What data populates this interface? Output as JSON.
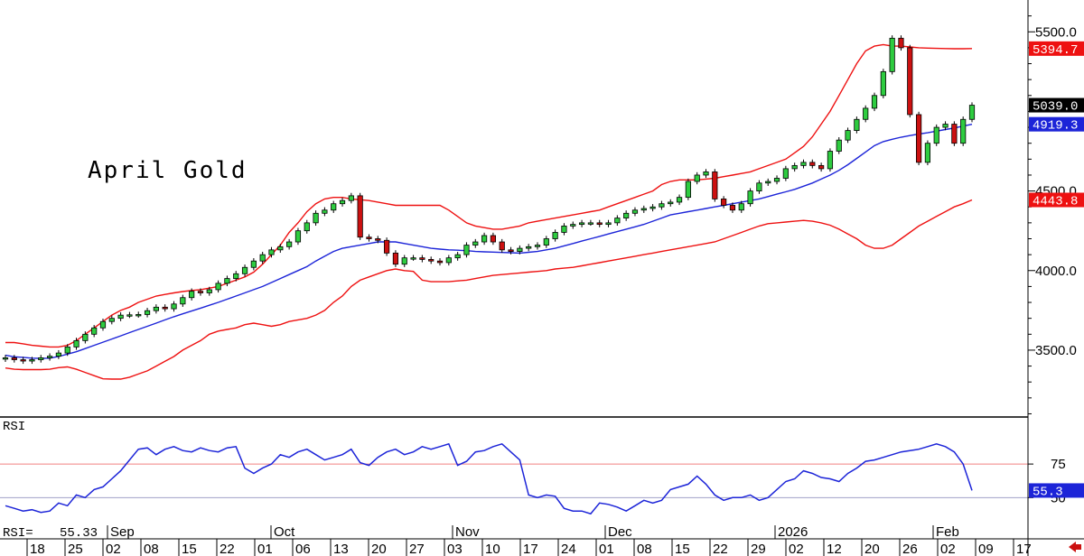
{
  "chart_data": [
    {
      "type": "candlestick",
      "title": "April Gold",
      "x_month_labels": [
        "Sep",
        "Oct",
        "Nov",
        "Dec",
        "2026",
        "Feb"
      ],
      "x_day_labels": [
        "18",
        "25",
        "02",
        "08",
        "15",
        "22",
        "01",
        "06",
        "13",
        "20",
        "27",
        "03",
        "10",
        "17",
        "24",
        "01",
        "08",
        "15",
        "22",
        "29",
        "02",
        "12",
        "20",
        "26",
        "02",
        "09",
        "17"
      ],
      "y_ticks": [
        3500.0,
        4000.0,
        4500.0,
        5500.0
      ],
      "y_tick_labels": [
        "3500.0",
        "4000.0",
        "4500.0",
        "5500.0"
      ],
      "ylim": [
        3080,
        5700
      ],
      "series": [
        {
          "name": "price",
          "type": "candlestick",
          "values": [
            3452,
            3440,
            3432,
            3440,
            3452,
            3462,
            3482,
            3520,
            3560,
            3600,
            3640,
            3680,
            3700,
            3720,
            3722,
            3724,
            3748,
            3770,
            3760,
            3790,
            3830,
            3870,
            3860,
            3880,
            3920,
            3950,
            3980,
            4020,
            4060,
            4100,
            4130,
            4150,
            4180,
            4250,
            4300,
            4360,
            4380,
            4420,
            4440,
            4470,
            4210,
            4200,
            4190,
            4110,
            4040,
            4080,
            4080,
            4070,
            4060,
            4050,
            4080,
            4100,
            4160,
            4180,
            4220,
            4180,
            4130,
            4120,
            4140,
            4150,
            4160,
            4200,
            4240,
            4280,
            4290,
            4300,
            4300,
            4290,
            4300,
            4330,
            4360,
            4380,
            4390,
            4400,
            4420,
            4430,
            4460,
            4560,
            4600,
            4620,
            4450,
            4410,
            4380,
            4420,
            4500,
            4550,
            4560,
            4580,
            4640,
            4660,
            4680,
            4660,
            4640,
            4750,
            4820,
            4880,
            4950,
            5020,
            5100,
            5250,
            5460,
            5400,
            4980,
            4680,
            4800,
            4900,
            4920,
            4800,
            4950,
            5039
          ]
        },
        {
          "name": "upper band",
          "type": "line",
          "color": "#ee1111",
          "values": [
            3548,
            3548,
            3540,
            3530,
            3525,
            3520,
            3520,
            3530,
            3560,
            3600,
            3640,
            3680,
            3720,
            3750,
            3770,
            3800,
            3820,
            3840,
            3850,
            3860,
            3868,
            3875,
            3880,
            3890,
            3900,
            3920,
            3940,
            3960,
            3990,
            4040,
            4100,
            4160,
            4240,
            4300,
            4370,
            4420,
            4450,
            4460,
            4460,
            4450,
            4445,
            4440,
            4430,
            4420,
            4410,
            4410,
            4410,
            4410,
            4410,
            4410,
            4380,
            4340,
            4300,
            4280,
            4270,
            4260,
            4260,
            4270,
            4280,
            4300,
            4310,
            4320,
            4330,
            4340,
            4350,
            4360,
            4370,
            4380,
            4400,
            4420,
            4440,
            4460,
            4480,
            4500,
            4540,
            4560,
            4570,
            4570,
            4570,
            4575,
            4580,
            4590,
            4600,
            4610,
            4620,
            4640,
            4660,
            4680,
            4700,
            4740,
            4780,
            4840,
            4920,
            5000,
            5100,
            5200,
            5300,
            5380,
            5410,
            5420,
            5410,
            5410,
            5405,
            5400,
            5398,
            5396,
            5395,
            5394,
            5394,
            5394.7
          ]
        },
        {
          "name": "middle band",
          "type": "line",
          "color": "#1c24d8",
          "values": [
            3468,
            3458,
            3455,
            3450,
            3448,
            3450,
            3460,
            3475,
            3490,
            3510,
            3530,
            3550,
            3570,
            3590,
            3610,
            3630,
            3650,
            3670,
            3690,
            3710,
            3728,
            3746,
            3764,
            3782,
            3800,
            3820,
            3840,
            3860,
            3880,
            3900,
            3925,
            3950,
            3975,
            4000,
            4025,
            4060,
            4090,
            4120,
            4140,
            4150,
            4160,
            4170,
            4180,
            4180,
            4180,
            4170,
            4160,
            4150,
            4140,
            4135,
            4130,
            4128,
            4125,
            4120,
            4118,
            4116,
            4114,
            4112,
            4110,
            4115,
            4120,
            4130,
            4140,
            4155,
            4170,
            4185,
            4200,
            4215,
            4230,
            4245,
            4260,
            4275,
            4290,
            4310,
            4330,
            4350,
            4360,
            4370,
            4380,
            4390,
            4400,
            4410,
            4420,
            4430,
            4440,
            4450,
            4465,
            4480,
            4495,
            4510,
            4530,
            4550,
            4575,
            4600,
            4630,
            4665,
            4705,
            4745,
            4785,
            4810,
            4825,
            4838,
            4848,
            4858,
            4866,
            4876,
            4886,
            4896,
            4908,
            4919.3
          ]
        },
        {
          "name": "lower band",
          "type": "line",
          "color": "#ee1111",
          "values": [
            3388,
            3380,
            3378,
            3378,
            3378,
            3380,
            3390,
            3395,
            3380,
            3360,
            3340,
            3320,
            3318,
            3318,
            3330,
            3350,
            3370,
            3400,
            3430,
            3460,
            3500,
            3530,
            3560,
            3600,
            3620,
            3630,
            3640,
            3660,
            3670,
            3660,
            3650,
            3660,
            3680,
            3690,
            3700,
            3720,
            3750,
            3800,
            3840,
            3900,
            3940,
            3960,
            3980,
            4000,
            4010,
            4000,
            3995,
            3940,
            3930,
            3930,
            3930,
            3935,
            3940,
            3950,
            3960,
            3970,
            3975,
            3980,
            3985,
            3990,
            3995,
            4000,
            4010,
            4015,
            4020,
            4030,
            4040,
            4050,
            4060,
            4070,
            4080,
            4090,
            4100,
            4110,
            4120,
            4130,
            4140,
            4150,
            4160,
            4170,
            4180,
            4200,
            4220,
            4240,
            4260,
            4280,
            4295,
            4300,
            4305,
            4310,
            4315,
            4310,
            4300,
            4285,
            4260,
            4230,
            4200,
            4160,
            4140,
            4140,
            4160,
            4200,
            4240,
            4280,
            4310,
            4340,
            4370,
            4400,
            4420,
            4443.8
          ]
        }
      ],
      "value_labels": [
        {
          "text": "5394.7",
          "value": 5394.7,
          "color": "#ee1111"
        },
        {
          "text": "5039.0",
          "value": 5039.0,
          "color": "#000000"
        },
        {
          "text": "4919.3",
          "value": 4919.3,
          "color": "#1c24d8"
        },
        {
          "text": "4443.8",
          "value": 4443.8,
          "color": "#ee1111"
        }
      ]
    },
    {
      "type": "line",
      "title": "RSI",
      "ylim": [
        20,
        110
      ],
      "y_ticks": [
        50,
        75
      ],
      "y_tick_labels": [
        "50",
        "75"
      ],
      "reference_lines": [
        {
          "value": 75,
          "color": "#f08080"
        },
        {
          "value": 50,
          "color": "#a0a0c8"
        }
      ],
      "series": [
        {
          "name": "RSI",
          "color": "#1c24d8",
          "values": [
            44,
            42,
            40,
            41,
            39,
            40,
            46,
            44,
            52,
            50,
            56,
            58,
            64,
            70,
            78,
            86,
            87,
            82,
            86,
            88,
            85,
            84,
            87,
            85,
            84,
            87,
            88,
            72,
            68,
            72,
            75,
            82,
            80,
            84,
            86,
            82,
            78,
            80,
            82,
            86,
            76,
            74,
            80,
            84,
            86,
            82,
            84,
            88,
            86,
            88,
            90,
            74,
            77,
            84,
            85,
            88,
            90,
            84,
            78,
            52,
            50,
            52,
            51,
            42,
            40,
            40,
            38,
            46,
            45,
            43,
            40,
            44,
            48,
            46,
            48,
            56,
            58,
            60,
            66,
            60,
            52,
            48,
            50,
            50,
            52,
            48,
            50,
            56,
            62,
            64,
            70,
            68,
            65,
            64,
            62,
            68,
            72,
            77,
            78,
            80,
            82,
            84,
            85,
            86,
            88,
            90,
            88,
            84,
            75,
            55.3
          ]
        }
      ],
      "readout": {
        "label": "RSI=",
        "value": "55.33"
      },
      "value_labels": [
        {
          "text": "55.3",
          "value": 55.3,
          "color": "#1c24d8"
        }
      ]
    }
  ],
  "colors": {
    "up_candle": "#2ecc40",
    "down_candle": "#cc1111",
    "axis": "#000000",
    "grid_ref_high": "#f08080",
    "grid_ref_low": "#a0a0c8"
  },
  "scroll_icon": "left-arrow-icon"
}
